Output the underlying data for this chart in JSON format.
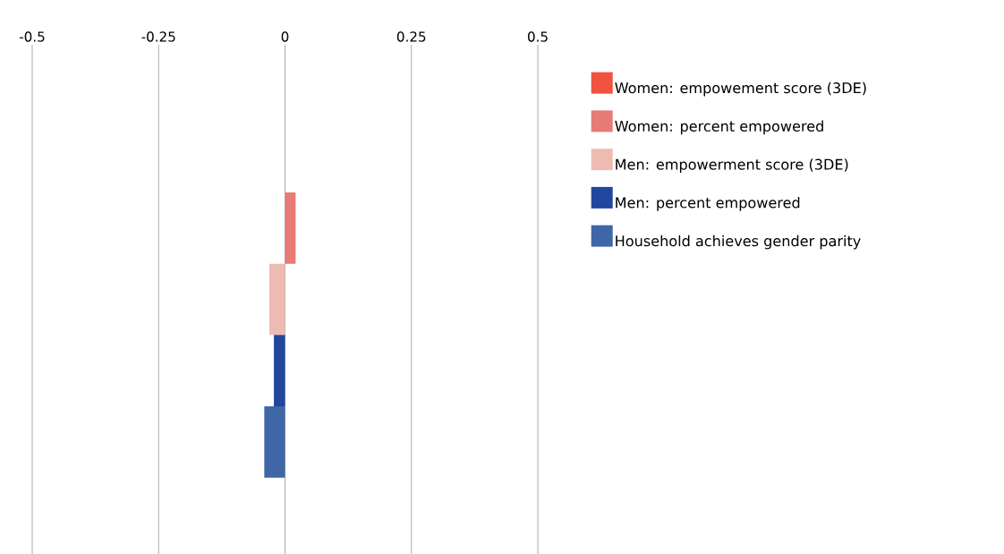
{
  "chart_data": {
    "type": "bar",
    "orientation": "horizontal",
    "categories": [
      null
    ],
    "series": [
      {
        "name": "Women: empowement score (3DE)",
        "color": "#f0533f",
        "values": [
          0
        ]
      },
      {
        "name": "Women: percent empowered",
        "color": "#e77b76",
        "values": [
          0.021
        ]
      },
      {
        "name": "Men: empowerment score (3DE)",
        "color": "#eebbb3",
        "values": [
          -0.031
        ]
      },
      {
        "name": "Men: percent empowered",
        "color": "#21479e",
        "values": [
          -0.022
        ]
      },
      {
        "name": "Household achieves gender parity",
        "color": "#3f66a6",
        "values": [
          -0.041
        ]
      }
    ],
    "xlim": [
      -0.5,
      0.5
    ],
    "xticks": [
      -0.5,
      -0.25,
      0,
      0.25,
      0.5
    ],
    "grid": "x",
    "legend": "right"
  }
}
